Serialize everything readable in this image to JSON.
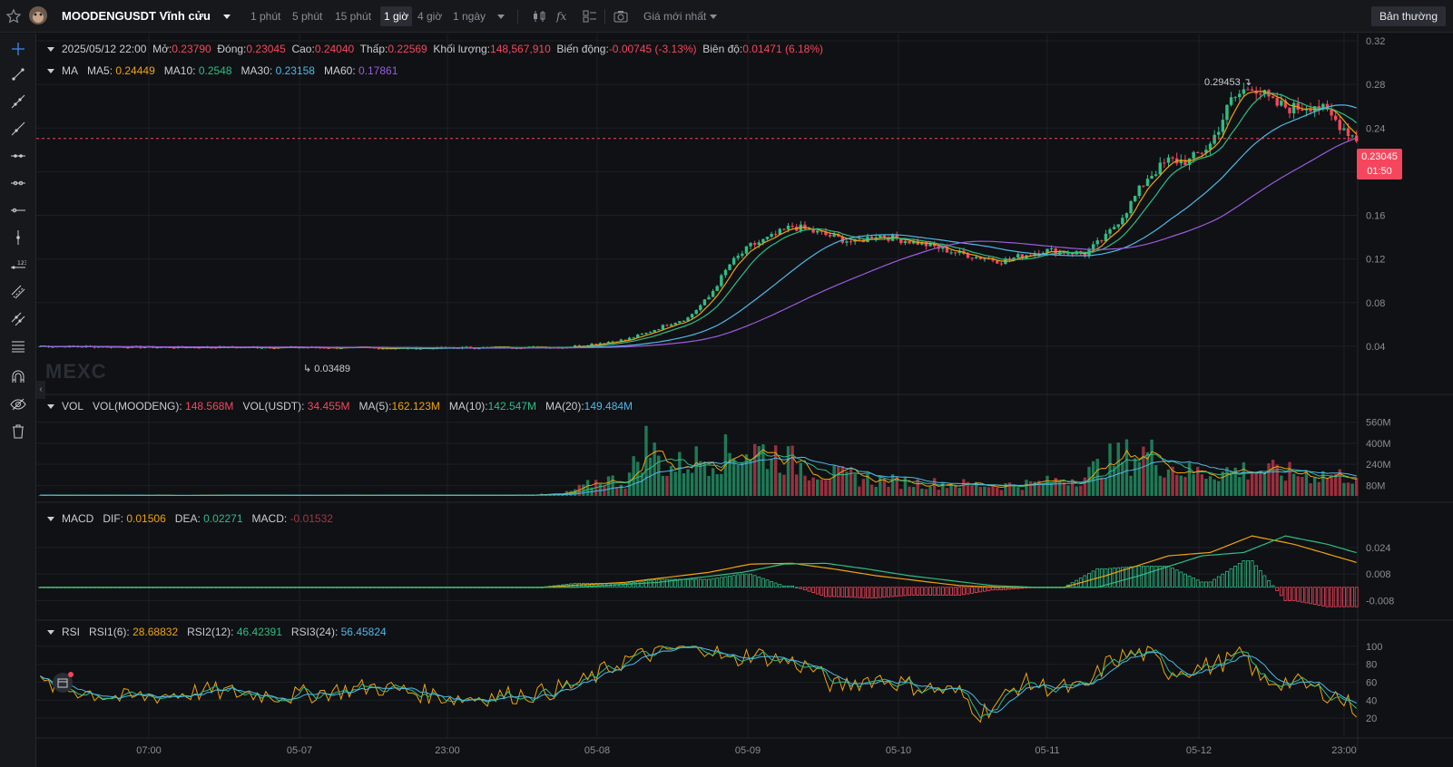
{
  "header": {
    "symbol": "MOODENGUSDT Vĩnh cửu",
    "timeframes": [
      {
        "label": "1 phút",
        "active": false
      },
      {
        "label": "5 phút",
        "active": false
      },
      {
        "label": "15 phút",
        "active": false
      },
      {
        "label": "1 giờ",
        "active": true
      },
      {
        "label": "4 giờ",
        "active": false
      },
      {
        "label": "1 ngày",
        "active": false
      }
    ],
    "price_type": "Giá mới nhất",
    "mode_button": "Bản thường"
  },
  "ohlc": {
    "date": "2025/05/12 22:00",
    "open_label": "Mở:",
    "open": "0.23790",
    "close_label": "Đóng:",
    "close": "0.23045",
    "high_label": "Cao:",
    "high": "0.24040",
    "low_label": "Thấp:",
    "low": "0.22569",
    "volume_label": "Khối lượng:",
    "volume": "148,567,910",
    "change_label": "Biến động:",
    "change": "-0.00745 (-3.13%)",
    "amplitude_label": "Biên độ:",
    "amplitude": "0.01471 (6.18%)"
  },
  "ma_legend": {
    "name": "MA",
    "ma5_label": "MA5:",
    "ma5": "0.24449",
    "ma10_label": "MA10:",
    "ma10": "0.2548",
    "ma30_label": "MA30:",
    "ma30": "0.23158",
    "ma60_label": "MA60:",
    "ma60": "0.17861"
  },
  "vol_legend": {
    "name": "VOL",
    "v1_label": "VOL(MOODENG):",
    "v1": "148.568M",
    "v2_label": "VOL(USDT):",
    "v2": "34.455M",
    "m5_label": "MA(5):",
    "m5": "162.123M",
    "m10_label": "MA(10):",
    "m10": "142.547M",
    "m20_label": "MA(20):",
    "m20": "149.484M"
  },
  "macd_legend": {
    "name": "MACD",
    "dif_label": "DIF:",
    "dif": "0.01506",
    "dea_label": "DEA:",
    "dea": "0.02271",
    "macd_label": "MACD:",
    "macd": "-0.01532"
  },
  "rsi_legend": {
    "name": "RSI",
    "r1_label": "RSI1(6):",
    "r1": "28.68832",
    "r2_label": "RSI2(12):",
    "r2": "46.42391",
    "r3_label": "RSI3(24):",
    "r3": "56.45824"
  },
  "current_price": {
    "price": "0.23045",
    "countdown": "01:50"
  },
  "annotations": {
    "high": "0.29453",
    "low": "0.03489"
  },
  "watermark": "MEXC",
  "colors": {
    "up": "#2ebd85",
    "down": "#f6465d",
    "ma5": "#f0a30a",
    "ma10": "#2ebd85",
    "ma30": "#4fb7e8",
    "ma60": "#9c5bde"
  },
  "chart_data": {
    "type": "candlestick",
    "time_ticks": [
      "07:00",
      "05-07",
      "23:00",
      "05-08",
      "05-09",
      "05-10",
      "05-11",
      "05-12",
      "23:00"
    ],
    "price_axis": {
      "ticks": [
        "0.32",
        "0.28",
        "0.24",
        "0.2",
        "0.16",
        "0.12",
        "0.08",
        "0.04"
      ],
      "range": [
        0.0,
        0.32
      ]
    },
    "volume_axis": {
      "ticks": [
        "560M",
        "400M",
        "240M",
        "80M"
      ],
      "range": [
        0,
        620
      ]
    },
    "macd_axis": {
      "ticks": [
        "0.024",
        "0.008",
        "-0.008"
      ],
      "range": [
        -0.016,
        0.036
      ]
    },
    "rsi_axis": {
      "ticks": [
        "100",
        "80",
        "60",
        "40",
        "20"
      ],
      "range": [
        10,
        108
      ]
    },
    "close_anchors": [
      [
        0,
        0.04
      ],
      [
        30,
        0.039
      ],
      [
        60,
        0.039
      ],
      [
        90,
        0.038
      ],
      [
        110,
        0.039
      ],
      [
        125,
        0.039
      ],
      [
        130,
        0.041
      ],
      [
        140,
        0.046
      ],
      [
        145,
        0.052
      ],
      [
        150,
        0.06
      ],
      [
        155,
        0.066
      ],
      [
        160,
        0.085
      ],
      [
        165,
        0.115
      ],
      [
        170,
        0.132
      ],
      [
        175,
        0.14
      ],
      [
        180,
        0.15
      ],
      [
        185,
        0.145
      ],
      [
        190,
        0.14
      ],
      [
        195,
        0.135
      ],
      [
        200,
        0.142
      ],
      [
        210,
        0.135
      ],
      [
        220,
        0.125
      ],
      [
        230,
        0.118
      ],
      [
        240,
        0.128
      ],
      [
        250,
        0.125
      ],
      [
        255,
        0.14
      ],
      [
        260,
        0.165
      ],
      [
        265,
        0.195
      ],
      [
        270,
        0.21
      ],
      [
        275,
        0.21
      ],
      [
        280,
        0.225
      ],
      [
        285,
        0.265
      ],
      [
        290,
        0.28
      ],
      [
        295,
        0.262
      ],
      [
        300,
        0.258
      ],
      [
        305,
        0.262
      ],
      [
        310,
        0.247
      ],
      [
        315,
        0.23
      ]
    ],
    "volume_anchors": [
      [
        0,
        5
      ],
      [
        60,
        5
      ],
      [
        110,
        5
      ],
      [
        125,
        15
      ],
      [
        130,
        70
      ],
      [
        135,
        130
      ],
      [
        140,
        100
      ],
      [
        145,
        400
      ],
      [
        150,
        200
      ],
      [
        155,
        260
      ],
      [
        160,
        300
      ],
      [
        165,
        320
      ],
      [
        170,
        350
      ],
      [
        175,
        330
      ],
      [
        180,
        260
      ],
      [
        185,
        200
      ],
      [
        190,
        160
      ],
      [
        200,
        120
      ],
      [
        210,
        100
      ],
      [
        220,
        90
      ],
      [
        230,
        80
      ],
      [
        240,
        100
      ],
      [
        250,
        150
      ],
      [
        255,
        260
      ],
      [
        260,
        300
      ],
      [
        265,
        330
      ],
      [
        270,
        230
      ],
      [
        275,
        180
      ],
      [
        280,
        180
      ],
      [
        290,
        200
      ],
      [
        300,
        170
      ],
      [
        315,
        150
      ]
    ],
    "macd_anchors": [
      [
        0,
        0.0
      ],
      [
        120,
        0.0
      ],
      [
        140,
        0.003
      ],
      [
        160,
        0.009
      ],
      [
        170,
        0.014
      ],
      [
        180,
        0.0145
      ],
      [
        190,
        0.011
      ],
      [
        200,
        0.007
      ],
      [
        210,
        0.004
      ],
      [
        220,
        0.001
      ],
      [
        230,
        0.0
      ],
      [
        245,
        0.0
      ],
      [
        255,
        0.007
      ],
      [
        270,
        0.019
      ],
      [
        280,
        0.021
      ],
      [
        290,
        0.031
      ],
      [
        300,
        0.026
      ],
      [
        315,
        0.015
      ]
    ],
    "rsi_anchors": [
      [
        0,
        58
      ],
      [
        20,
        42
      ],
      [
        40,
        50
      ],
      [
        60,
        45
      ],
      [
        80,
        55
      ],
      [
        100,
        42
      ],
      [
        120,
        48
      ],
      [
        130,
        60
      ],
      [
        140,
        85
      ],
      [
        150,
        96
      ],
      [
        160,
        100
      ],
      [
        165,
        82
      ],
      [
        170,
        92
      ],
      [
        180,
        82
      ],
      [
        185,
        75
      ],
      [
        190,
        55
      ],
      [
        200,
        65
      ],
      [
        210,
        55
      ],
      [
        220,
        48
      ],
      [
        225,
        25
      ],
      [
        230,
        40
      ],
      [
        235,
        60
      ],
      [
        240,
        55
      ],
      [
        250,
        52
      ],
      [
        255,
        80
      ],
      [
        260,
        90
      ],
      [
        265,
        92
      ],
      [
        270,
        72
      ],
      [
        280,
        78
      ],
      [
        288,
        90
      ],
      [
        292,
        62
      ],
      [
        300,
        60
      ],
      [
        310,
        45
      ],
      [
        315,
        30
      ]
    ],
    "candle_count": 316
  }
}
